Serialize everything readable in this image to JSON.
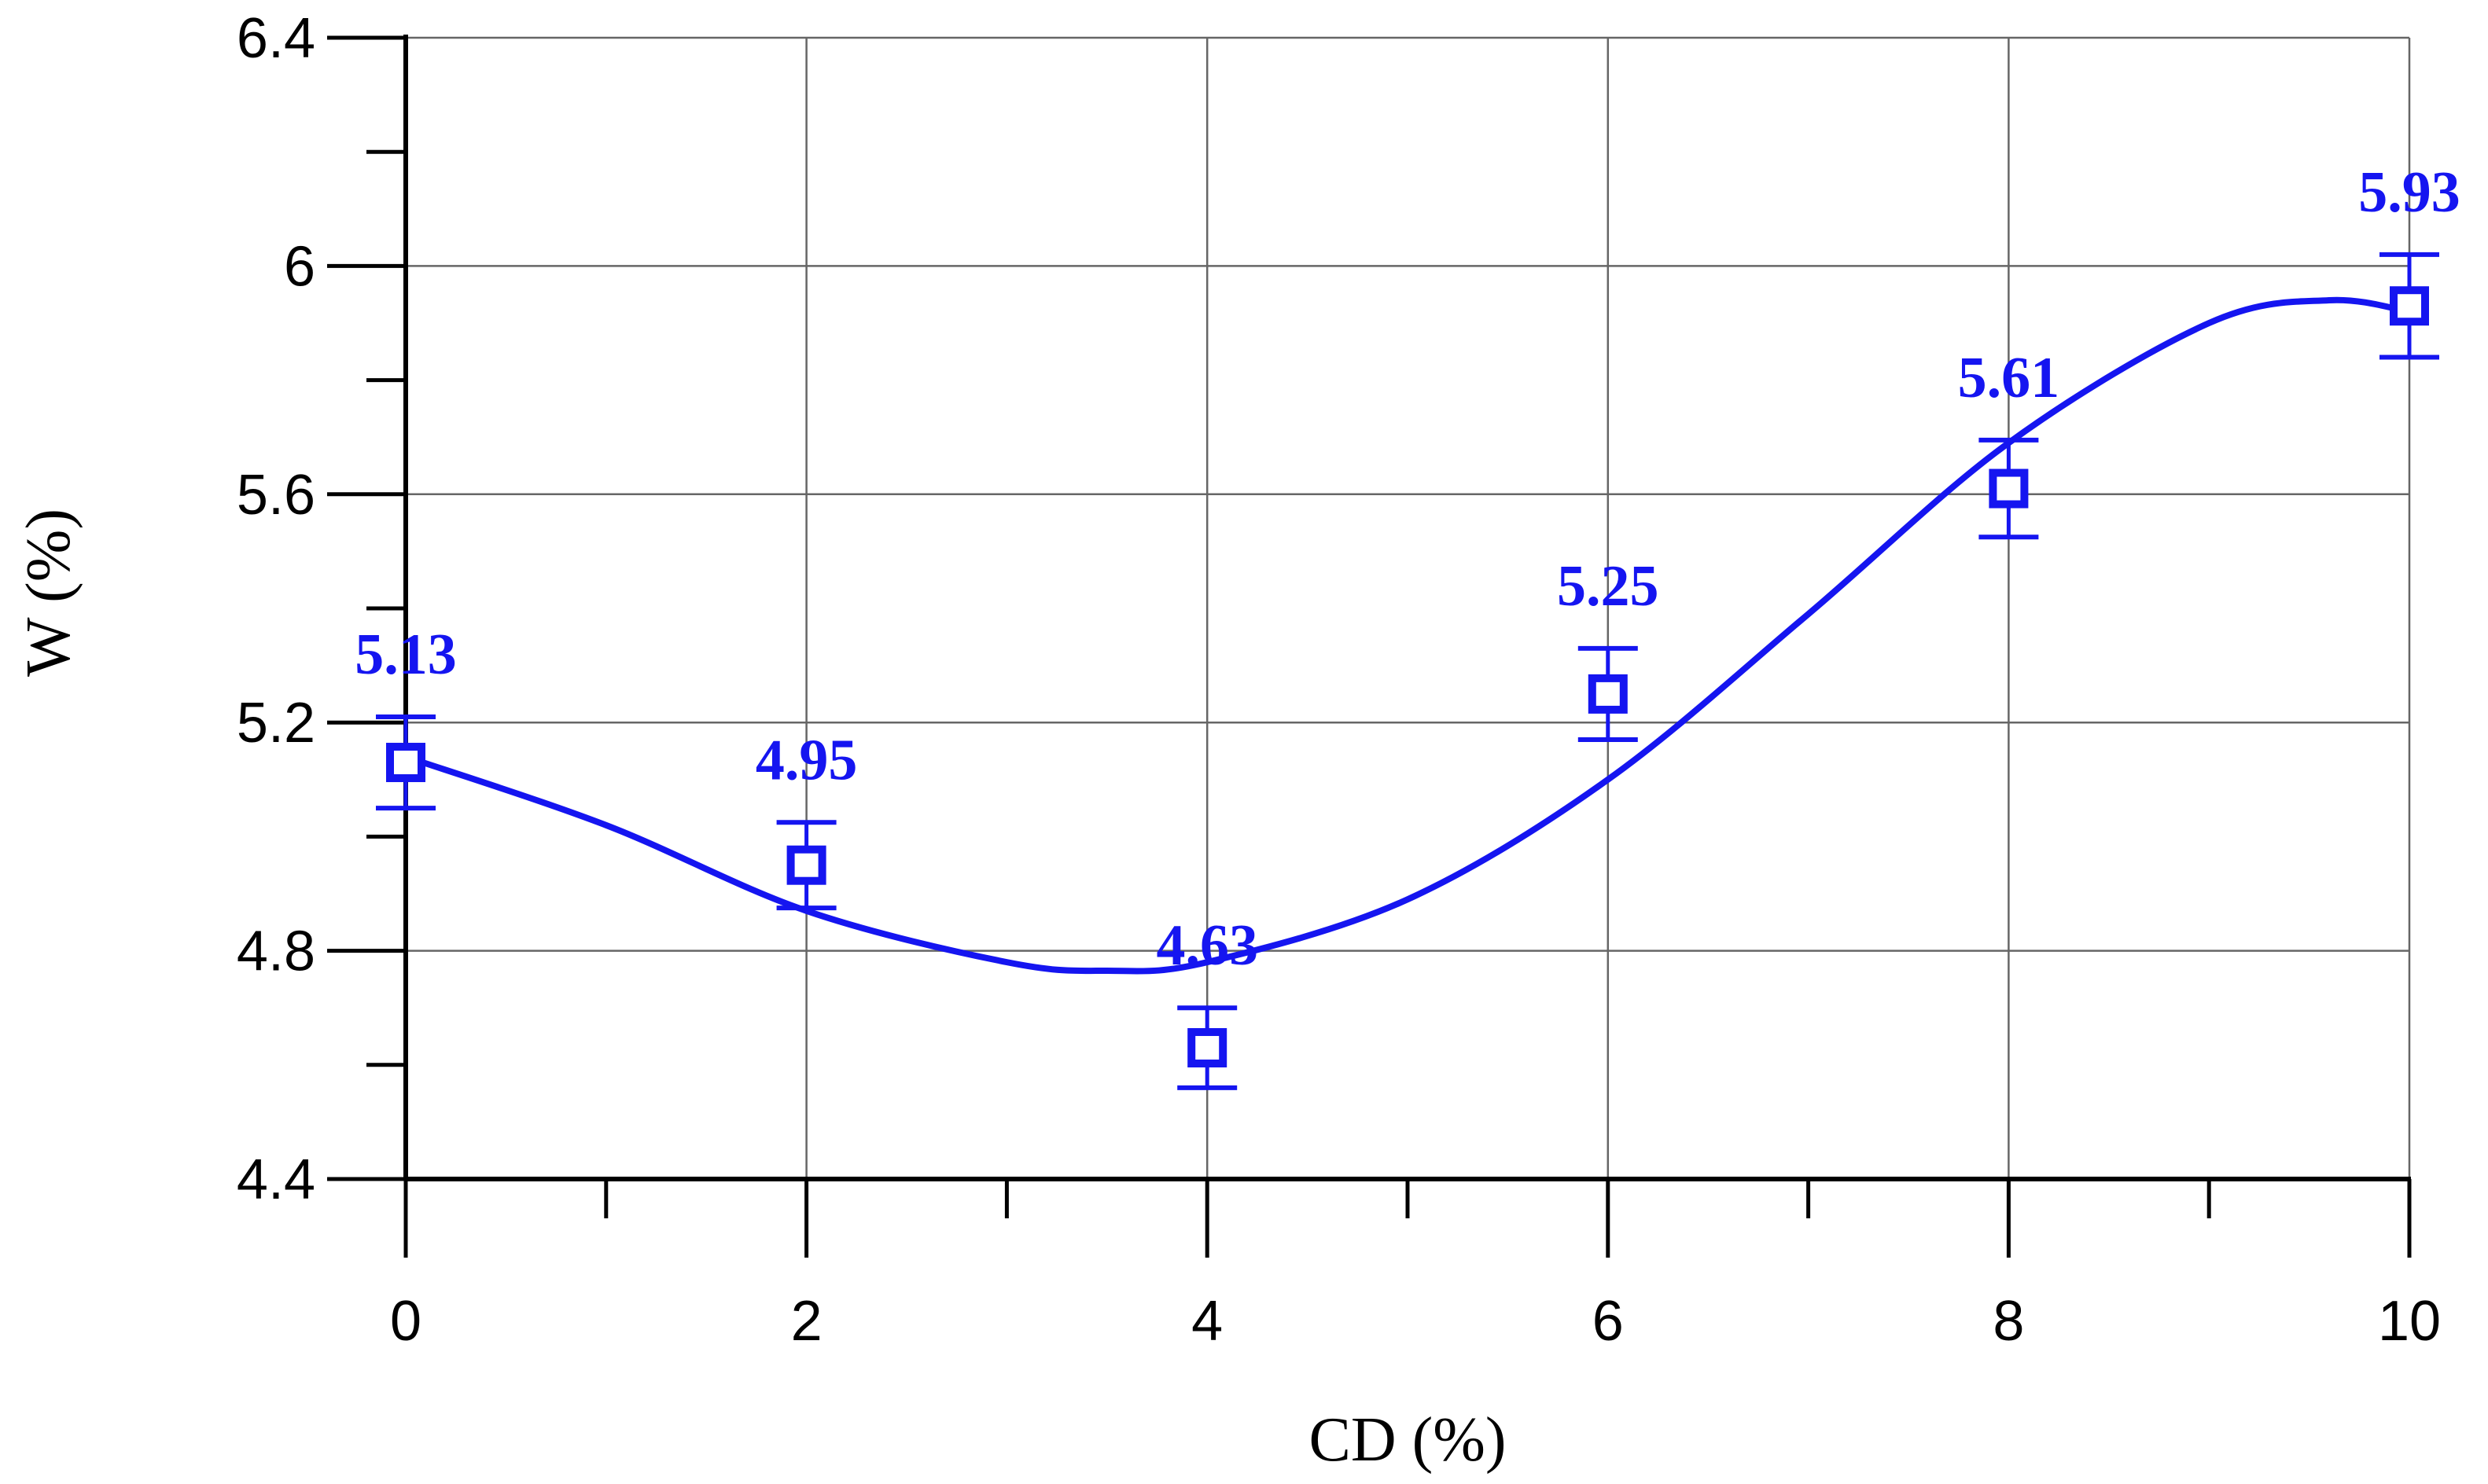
{
  "chart_data": {
    "type": "scatter",
    "title": "",
    "xlabel": "CD (%)",
    "ylabel": "W (%)",
    "xlim": [
      0,
      10
    ],
    "ylim": [
      4.4,
      6.4
    ],
    "x_ticks": [
      "0",
      "2",
      "4",
      "6",
      "8",
      "10"
    ],
    "y_ticks": [
      "4.4",
      "4.8",
      "5.2",
      "5.6",
      "6",
      "6.4"
    ],
    "grid": true,
    "legend": "none",
    "series": [
      {
        "marker": "hollow-square",
        "color": "#1515f0",
        "x": [
          0,
          2,
          4,
          6,
          8,
          10
        ],
        "y": [
          5.13,
          4.95,
          4.63,
          5.25,
          5.61,
          5.93
        ],
        "error": [
          0.08,
          0.075,
          0.07,
          0.08,
          0.085,
          0.09
        ],
        "point_labels": [
          "5.13",
          "4.95",
          "4.63",
          "5.25",
          "5.61",
          "5.93"
        ]
      }
    ],
    "fit_curve": {
      "color": "#1515f0",
      "x": [
        0,
        1,
        2,
        3,
        3.5,
        4,
        5,
        6,
        7,
        8,
        9,
        9.6,
        10
      ],
      "y": [
        5.14,
        5.02,
        4.87,
        4.78,
        4.765,
        4.78,
        4.89,
        5.1,
        5.39,
        5.69,
        5.9,
        5.94,
        5.92
      ]
    }
  }
}
